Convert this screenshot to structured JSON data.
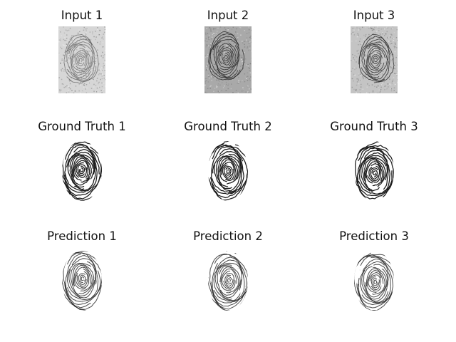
{
  "panels": [
    {
      "row": "input",
      "col": 1,
      "title": "Input 1",
      "image": "fingerprint-scan",
      "style": "light-noisy-gray"
    },
    {
      "row": "input",
      "col": 2,
      "title": "Input 2",
      "image": "fingerprint-scan",
      "style": "dark-noisy-gray"
    },
    {
      "row": "input",
      "col": 3,
      "title": "Input 3",
      "image": "fingerprint-scan",
      "style": "medium-noisy-gray"
    },
    {
      "row": "ground-truth",
      "col": 1,
      "title": "Ground Truth 1",
      "image": "fingerprint-binary",
      "style": "clean-binary"
    },
    {
      "row": "ground-truth",
      "col": 2,
      "title": "Ground Truth 2",
      "image": "fingerprint-binary",
      "style": "clean-binary"
    },
    {
      "row": "ground-truth",
      "col": 3,
      "title": "Ground Truth 3",
      "image": "fingerprint-binary",
      "style": "clean-binary"
    },
    {
      "row": "prediction",
      "col": 1,
      "title": "Prediction 1",
      "image": "fingerprint-predicted",
      "style": "soft-binary"
    },
    {
      "row": "prediction",
      "col": 2,
      "title": "Prediction 2",
      "image": "fingerprint-predicted",
      "style": "soft-binary"
    },
    {
      "row": "prediction",
      "col": 3,
      "title": "Prediction 3",
      "image": "fingerprint-predicted",
      "style": "soft-binary"
    }
  ],
  "colors": {
    "background": "#ffffff",
    "title_text": "#111111",
    "ridge_dark": "#1a1a1a",
    "input_light_bg": "#d6d6d6",
    "input_dark_bg": "#a9a9a9",
    "input_mid_bg": "#c4c4c4"
  }
}
